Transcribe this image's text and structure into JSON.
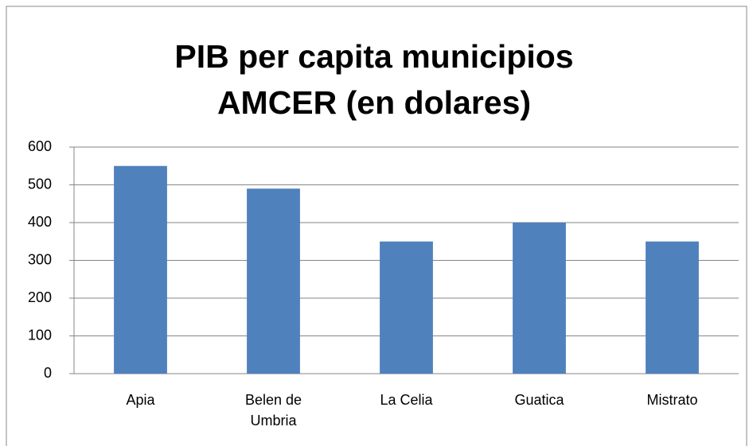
{
  "chart_data": {
    "type": "bar",
    "title": "PIB per capita municipios AMCER (en dolares)",
    "categories": [
      "Apia",
      "Belen de Umbria",
      "La Celia",
      "Guatica",
      "Mistrato"
    ],
    "values": [
      550,
      490,
      350,
      400,
      350
    ],
    "color": "#4f81bd",
    "ylim": [
      0,
      600
    ],
    "yticks": [
      0,
      100,
      200,
      300,
      400,
      500,
      600
    ],
    "grid": true
  }
}
